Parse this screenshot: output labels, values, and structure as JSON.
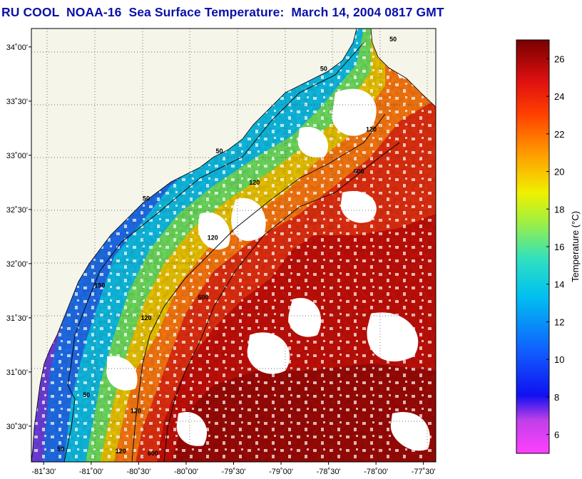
{
  "title": "RU COOL  NOAA-16  Sea Surface Temperature:  March 14, 2004 0817 GMT",
  "map": {
    "lon_ticks": [
      "-81˚30'",
      "-81˚00'",
      "-80˚30'",
      "-80˚00'",
      "-79˚30'",
      "-79˚00'",
      "-78˚30'",
      "-78˚00'",
      "-77˚30'"
    ],
    "lat_ticks": [
      "34˚00'",
      "33˚30'",
      "33˚00'",
      "32˚30'",
      "32˚00'",
      "31˚30'",
      "31˚00'",
      "30˚30'"
    ],
    "lon_range": [
      -81.63,
      -77.37
    ],
    "lat_range": [
      30.17,
      34.17
    ],
    "grid": true,
    "land_color": "#f6f5ea",
    "cloud_color": "#ffffff",
    "bathymetry_contours": [
      "50",
      "120",
      "600"
    ],
    "contour_labels": [
      {
        "text": "50",
        "lon": -77.82,
        "lat": 34.05
      },
      {
        "text": "50",
        "lon": -78.55,
        "lat": 33.78
      },
      {
        "text": "50",
        "lon": -79.65,
        "lat": 33.02
      },
      {
        "text": "50",
        "lon": -80.42,
        "lat": 32.58
      },
      {
        "text": "50",
        "lon": -81.05,
        "lat": 30.77
      },
      {
        "text": "50",
        "lon": -81.32,
        "lat": 30.27
      },
      {
        "text": "120",
        "lon": -78.05,
        "lat": 33.22
      },
      {
        "text": "120",
        "lon": -79.28,
        "lat": 32.73
      },
      {
        "text": "120",
        "lon": -79.72,
        "lat": 32.22
      },
      {
        "text": "120",
        "lon": -80.42,
        "lat": 31.48
      },
      {
        "text": "120",
        "lon": -80.53,
        "lat": 30.62
      },
      {
        "text": "120",
        "lon": -80.69,
        "lat": 30.25
      },
      {
        "text": "150",
        "lon": -80.91,
        "lat": 31.78
      },
      {
        "text": "600",
        "lon": -78.18,
        "lat": 32.83
      },
      {
        "text": "600",
        "lon": -79.82,
        "lat": 31.67
      },
      {
        "text": "600",
        "lon": -80.35,
        "lat": 30.23
      }
    ]
  },
  "colorbar": {
    "label": "Temperature (°C)",
    "min": 5,
    "max": 27,
    "ticks": [
      "6",
      "8",
      "10",
      "12",
      "14",
      "16",
      "18",
      "20",
      "22",
      "24",
      "26"
    ],
    "tick_values": [
      6,
      8,
      10,
      12,
      14,
      16,
      18,
      20,
      22,
      24,
      26
    ],
    "colors": [
      "#ff40ff",
      "#c040e8",
      "#1010f0",
      "#1060ff",
      "#00c0f0",
      "#30e0c0",
      "#a0f040",
      "#f0f000",
      "#ffa000",
      "#ff4000",
      "#e01010",
      "#780000"
    ],
    "color_stops": [
      0,
      0.08,
      0.14,
      0.25,
      0.38,
      0.47,
      0.56,
      0.63,
      0.72,
      0.82,
      0.9,
      1
    ]
  }
}
